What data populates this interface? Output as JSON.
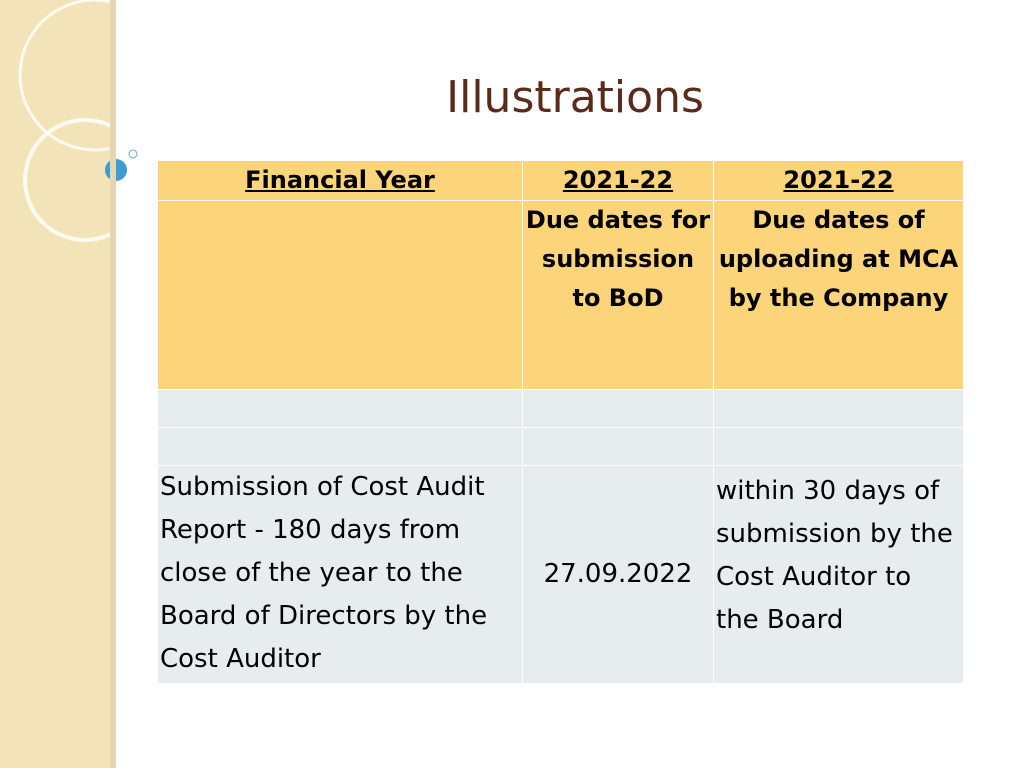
{
  "title": "Illustrations",
  "table": {
    "header": [
      "Financial Year",
      "2021-22",
      "2021-22"
    ],
    "subheader": [
      "",
      "Due dates for submission to BoD",
      "Due dates of uploading at MCA by the Company"
    ],
    "rows": [
      [
        "Submission of Cost Audit Report - 180 days from close of the year to the Board of Directors by the Cost Auditor",
        "27.09.2022",
        "within 30 days of submission by the Cost Auditor to the Board"
      ]
    ]
  }
}
